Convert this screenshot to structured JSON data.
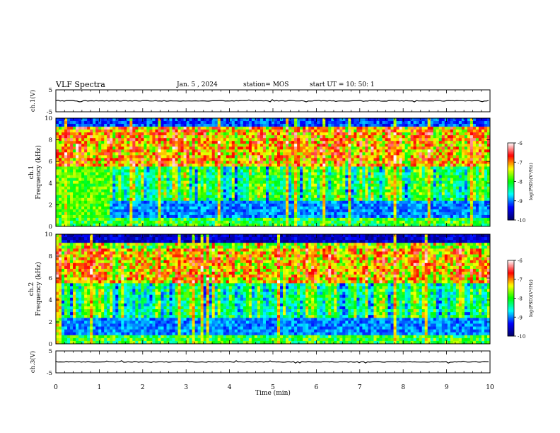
{
  "header": {
    "title": "VLF Spectra",
    "date": "Jan. 5 , 2024",
    "station": "station= MOS",
    "start": "start  UT =   10: 50: 1"
  },
  "colors": {
    "background": "#ffffff",
    "axis": "#000000",
    "colormap": [
      "#000066",
      "#0000ff",
      "#00ffff",
      "#00ff00",
      "#ffff00",
      "#ff0000",
      "#ffffff"
    ]
  },
  "chart_data": [
    {
      "type": "line",
      "name": "ch1-waveform",
      "ylabel": "ch.1(V)",
      "ylim": [
        -5,
        5
      ],
      "yticks": [
        "5",
        "-5"
      ],
      "xlim": [
        0,
        10
      ],
      "level": 0
    },
    {
      "type": "heatmap",
      "name": "ch1-spectrogram",
      "ylabel": "ch.1 Frequency (kHz)",
      "ylim": [
        0,
        10
      ],
      "yticks": [
        "0",
        "2",
        "4",
        "6",
        "8",
        "10"
      ],
      "xlim": [
        0,
        10
      ],
      "colorbar": {
        "label": "log(PSD)(V²/Hz)",
        "range": [
          -10,
          -6
        ],
        "ticks": [
          "-6",
          "-7",
          "-8",
          "-9",
          "-10"
        ]
      }
    },
    {
      "type": "heatmap",
      "name": "ch2-spectrogram",
      "ylabel": "ch.2 Frequency (kHz)",
      "ylim": [
        0,
        10
      ],
      "yticks": [
        "0",
        "2",
        "4",
        "6",
        "8",
        "10"
      ],
      "xlim": [
        0,
        10
      ],
      "colorbar": {
        "label": "log(PSD)(V²/Hz)",
        "range": [
          -10,
          -6
        ],
        "ticks": [
          "-6",
          "-7",
          "-8",
          "-9",
          "-10"
        ]
      }
    },
    {
      "type": "line",
      "name": "ch3-waveform",
      "ylabel": "ch.3(V)",
      "ylim": [
        -5,
        5
      ],
      "yticks": [
        "5",
        "-5"
      ],
      "xlim": [
        0,
        10
      ],
      "level": 0
    }
  ],
  "xaxis": {
    "label": "Time  (min)",
    "ticks": [
      "0",
      "1",
      "2",
      "3",
      "4",
      "5",
      "6",
      "7",
      "8",
      "9",
      "10"
    ]
  }
}
